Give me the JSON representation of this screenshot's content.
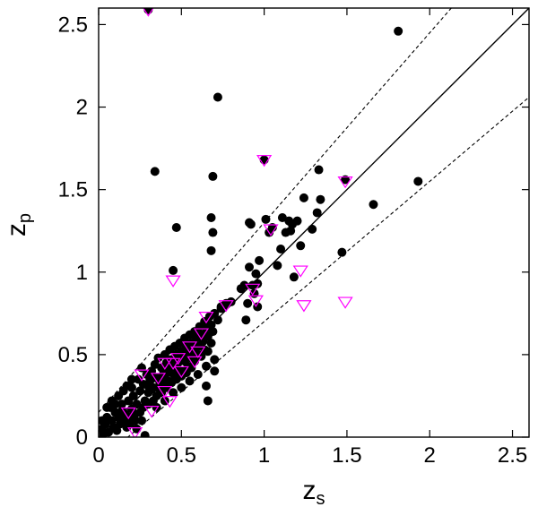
{
  "chart_data": {
    "type": "scatter",
    "title": "",
    "xlabel": "z",
    "xlabel_sub": "s",
    "ylabel": "z",
    "ylabel_sub": "p",
    "xlim": [
      0,
      2.6
    ],
    "ylim": [
      0,
      2.6
    ],
    "xticks": [
      "0",
      "0.5",
      "1",
      "1.5",
      "2",
      "2.5"
    ],
    "yticks": [
      "0",
      "0.5",
      "1",
      "1.5",
      "2",
      "2.5"
    ],
    "grid": false,
    "colors": {
      "dot": "#000000",
      "triangle_edge": "#ff00ff",
      "lines": "#000000"
    },
    "reference_lines": [
      {
        "name": "identity",
        "style": "solid",
        "slope": 1.0,
        "intercept": 0.0
      },
      {
        "name": "upper-bound",
        "style": "dashed",
        "slope": 1.15,
        "intercept": 0.15
      },
      {
        "name": "lower-bound",
        "style": "dashed",
        "slope": 0.85,
        "intercept": -0.15
      }
    ],
    "series": [
      {
        "marker": "circle",
        "points": [
          [
            0.02,
            0.05
          ],
          [
            0.03,
            0.02
          ],
          [
            0.04,
            0.08
          ],
          [
            0.05,
            0.12
          ],
          [
            0.06,
            0.03
          ],
          [
            0.07,
            0.18
          ],
          [
            0.08,
            0.1
          ],
          [
            0.09,
            0.06
          ],
          [
            0.1,
            0.15
          ],
          [
            0.11,
            0.04
          ],
          [
            0.12,
            0.12
          ],
          [
            0.13,
            0.08
          ],
          [
            0.14,
            0.2
          ],
          [
            0.15,
            0.1
          ],
          [
            0.16,
            0.14
          ],
          [
            0.17,
            0.06
          ],
          [
            0.18,
            0.22
          ],
          [
            0.19,
            0.12
          ],
          [
            0.2,
            0.3
          ],
          [
            0.2,
            0.17
          ],
          [
            0.21,
            0.25
          ],
          [
            0.22,
            0.14
          ],
          [
            0.23,
            0.2
          ],
          [
            0.24,
            0.35
          ],
          [
            0.25,
            0.28
          ],
          [
            0.26,
            0.42
          ],
          [
            0.27,
            0.32
          ],
          [
            0.28,
            0.22
          ],
          [
            0.29,
            0.38
          ],
          [
            0.3,
            0.27
          ],
          [
            0.31,
            0.35
          ],
          [
            0.32,
            0.4
          ],
          [
            0.33,
            0.3
          ],
          [
            0.34,
            0.44
          ],
          [
            0.35,
            0.36
          ],
          [
            0.36,
            0.48
          ],
          [
            0.37,
            0.33
          ],
          [
            0.38,
            0.42
          ],
          [
            0.39,
            0.38
          ],
          [
            0.4,
            0.5
          ],
          [
            0.41,
            0.45
          ],
          [
            0.42,
            0.4
          ],
          [
            0.43,
            0.53
          ],
          [
            0.44,
            0.47
          ],
          [
            0.45,
            0.42
          ],
          [
            0.46,
            0.55
          ],
          [
            0.47,
            0.5
          ],
          [
            0.48,
            0.45
          ],
          [
            0.49,
            0.57
          ],
          [
            0.5,
            0.52
          ],
          [
            0.51,
            0.48
          ],
          [
            0.52,
            0.6
          ],
          [
            0.53,
            0.55
          ],
          [
            0.54,
            0.5
          ],
          [
            0.55,
            0.62
          ],
          [
            0.56,
            0.57
          ],
          [
            0.57,
            0.52
          ],
          [
            0.58,
            0.64
          ],
          [
            0.59,
            0.6
          ],
          [
            0.6,
            0.55
          ],
          [
            0.61,
            0.67
          ],
          [
            0.62,
            0.62
          ],
          [
            0.63,
            0.58
          ],
          [
            0.64,
            0.7
          ],
          [
            0.65,
            0.66
          ],
          [
            0.66,
            0.61
          ],
          [
            0.67,
            0.73
          ],
          [
            0.68,
            0.68
          ],
          [
            0.69,
            0.64
          ],
          [
            0.7,
            0.75
          ],
          [
            0.72,
            0.71
          ],
          [
            0.74,
            0.78
          ],
          [
            0.76,
            0.8
          ],
          [
            0.3,
            0.31
          ],
          [
            0.32,
            0.29
          ],
          [
            0.38,
            0.32
          ],
          [
            0.4,
            0.36
          ],
          [
            0.44,
            0.39
          ],
          [
            0.48,
            0.41
          ],
          [
            0.52,
            0.46
          ],
          [
            0.56,
            0.48
          ],
          [
            0.6,
            0.5
          ],
          [
            0.64,
            0.53
          ],
          [
            0.68,
            0.57
          ],
          [
            0.36,
            0.3
          ],
          [
            0.42,
            0.34
          ],
          [
            0.46,
            0.37
          ],
          [
            0.5,
            0.4
          ],
          [
            0.54,
            0.43
          ],
          [
            0.58,
            0.46
          ],
          [
            0.62,
            0.49
          ],
          [
            0.66,
            0.52
          ],
          [
            0.18,
            0.12
          ],
          [
            0.22,
            0.1
          ],
          [
            0.25,
            0.15
          ],
          [
            0.27,
            0.18
          ],
          [
            0.3,
            0.2
          ],
          [
            0.33,
            0.22
          ],
          [
            0.35,
            0.25
          ],
          [
            0.38,
            0.27
          ],
          [
            0.41,
            0.3
          ],
          [
            0.44,
            0.33
          ],
          [
            0.47,
            0.35
          ],
          [
            0.5,
            0.37
          ],
          [
            0.53,
            0.39
          ],
          [
            0.56,
            0.42
          ],
          [
            0.1,
            0.2
          ],
          [
            0.12,
            0.25
          ],
          [
            0.15,
            0.28
          ],
          [
            0.17,
            0.31
          ],
          [
            0.2,
            0.35
          ],
          [
            0.05,
            0.18
          ],
          [
            0.08,
            0.22
          ],
          [
            0.02,
            0.1
          ],
          [
            0.14,
            0.16
          ],
          [
            0.19,
            0.08
          ],
          [
            0.23,
            0.05
          ],
          [
            0.26,
            0.1
          ],
          [
            0.35,
            0.18
          ],
          [
            0.4,
            0.22
          ],
          [
            0.45,
            0.27
          ],
          [
            0.5,
            0.3
          ],
          [
            0.55,
            0.34
          ],
          [
            0.6,
            0.38
          ],
          [
            0.65,
            0.43
          ],
          [
            0.7,
            0.47
          ],
          [
            0.66,
            0.22
          ],
          [
            0.65,
            0.31
          ],
          [
            0.7,
            0.4
          ],
          [
            0.28,
            0.01
          ],
          [
            0.3,
            2.59
          ],
          [
            0.72,
            2.06
          ],
          [
            0.34,
            1.61
          ],
          [
            0.69,
            1.58
          ],
          [
            0.47,
            1.27
          ],
          [
            0.68,
            1.33
          ],
          [
            0.69,
            1.24
          ],
          [
            0.68,
            1.13
          ],
          [
            0.45,
            1.01
          ],
          [
            0.77,
            0.81
          ],
          [
            0.74,
            0.79
          ],
          [
            0.8,
            0.82
          ],
          [
            0.86,
            0.9
          ],
          [
            0.88,
            0.92
          ],
          [
            0.89,
            0.71
          ],
          [
            0.9,
            0.81
          ],
          [
            0.91,
            1.03
          ],
          [
            0.91,
            1.3
          ],
          [
            0.92,
            1.29
          ],
          [
            0.93,
            0.92
          ],
          [
            0.94,
            0.87
          ],
          [
            0.95,
            0.99
          ],
          [
            0.96,
            0.93
          ],
          [
            0.96,
            0.79
          ],
          [
            0.97,
            1.07
          ],
          [
            1.0,
            1.68
          ],
          [
            1.01,
            1.32
          ],
          [
            1.03,
            1.24
          ],
          [
            1.05,
            1.27
          ],
          [
            1.08,
            1.04
          ],
          [
            1.1,
            1.14
          ],
          [
            1.11,
            1.33
          ],
          [
            1.13,
            1.24
          ],
          [
            1.15,
            1.31
          ],
          [
            1.16,
            1.25
          ],
          [
            1.17,
            1.29
          ],
          [
            1.18,
            0.97
          ],
          [
            1.2,
            1.31
          ],
          [
            1.22,
            1.16
          ],
          [
            1.24,
            1.45
          ],
          [
            1.29,
            1.26
          ],
          [
            1.32,
            1.36
          ],
          [
            1.33,
            1.62
          ],
          [
            1.34,
            1.44
          ],
          [
            1.47,
            1.12
          ],
          [
            1.49,
            1.56
          ],
          [
            1.66,
            1.41
          ],
          [
            1.81,
            2.46
          ],
          [
            1.93,
            1.55
          ]
        ]
      },
      {
        "marker": "triangle-down",
        "points": [
          [
            0.3,
            2.59
          ],
          [
            1.0,
            1.68
          ],
          [
            1.49,
            1.55
          ],
          [
            1.04,
            1.26
          ],
          [
            1.22,
            1.01
          ],
          [
            1.24,
            0.8
          ],
          [
            1.49,
            0.82
          ],
          [
            0.45,
            0.95
          ],
          [
            0.22,
            0.03
          ],
          [
            0.18,
            0.15
          ],
          [
            0.43,
            0.22
          ],
          [
            0.77,
            0.8
          ],
          [
            0.93,
            0.9
          ],
          [
            0.95,
            0.83
          ],
          [
            0.65,
            0.73
          ],
          [
            0.62,
            0.63
          ],
          [
            0.6,
            0.52
          ],
          [
            0.58,
            0.46
          ],
          [
            0.48,
            0.48
          ],
          [
            0.45,
            0.45
          ],
          [
            0.4,
            0.45
          ],
          [
            0.36,
            0.36
          ],
          [
            0.4,
            0.28
          ],
          [
            0.26,
            0.38
          ],
          [
            0.32,
            0.16
          ],
          [
            0.5,
            0.4
          ],
          [
            0.55,
            0.55
          ]
        ]
      }
    ]
  }
}
